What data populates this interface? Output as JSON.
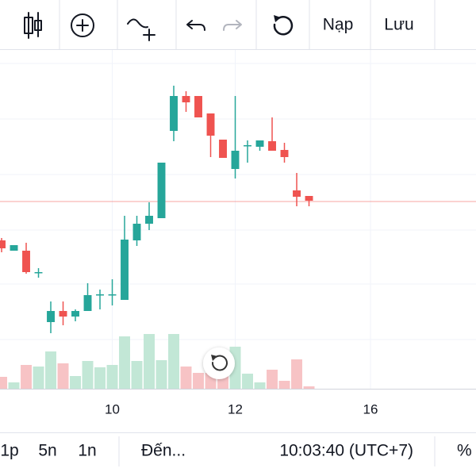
{
  "toolbar": {
    "buttons": [
      "Nạp",
      "Lưu"
    ]
  },
  "chart_data": {
    "type": "candlestick",
    "x": [
      0,
      1,
      2,
      3,
      4,
      5,
      6,
      7,
      8,
      9,
      10,
      11,
      12,
      13,
      14,
      15,
      16,
      17,
      18,
      19,
      20,
      21,
      22,
      23,
      24,
      25
    ],
    "open": [
      187,
      174,
      174,
      146,
      84,
      98,
      91,
      98,
      118,
      118,
      112,
      187,
      208,
      215,
      325,
      369,
      369,
      347,
      314,
      277,
      306,
      305,
      312,
      301,
      250,
      243
    ],
    "high": [
      190,
      181,
      184,
      152,
      110,
      110,
      100,
      133,
      125,
      138,
      218,
      218,
      235,
      285,
      382,
      375,
      369,
      347,
      314,
      369,
      313,
      313,
      342,
      310,
      272,
      243
    ],
    "low": [
      172,
      174,
      145,
      140,
      70,
      80,
      85,
      98,
      100,
      105,
      112,
      180,
      200,
      215,
      312,
      349,
      342,
      292,
      291,
      265,
      285,
      300,
      300,
      285,
      230,
      230
    ],
    "close": [
      177,
      181,
      147,
      147,
      98,
      91,
      98,
      118,
      119,
      119,
      188,
      208,
      218,
      285,
      369,
      361,
      342,
      319,
      291,
      300,
      307,
      313,
      300,
      292,
      242,
      237
    ],
    "volume": [
      15,
      8,
      30,
      28,
      47,
      32,
      16,
      35,
      27,
      30,
      66,
      35,
      69,
      36,
      69,
      28,
      20,
      20,
      44,
      53,
      19,
      8,
      24,
      10,
      37,
      3
    ],
    "up_color": "#26a69a",
    "down_color": "#ef5350",
    "volume_up_color": "#c2e7d6",
    "volume_down_color": "#f7c3c5",
    "price_line": 236,
    "xlim": [
      -0.13,
      38.58
    ],
    "xticks": [
      {
        "value": 9,
        "label": "10"
      },
      {
        "value": 19,
        "label": "12"
      },
      {
        "value": 30,
        "label": "16"
      }
    ],
    "ylim": [
      0,
      428
    ],
    "y2lim": [
      0,
      428
    ]
  },
  "bottom": {
    "intervals": [
      "1p",
      "5n",
      "1n"
    ],
    "goto": "Đến...",
    "clock": "10:03:40 (UTC+7)",
    "percent": "%"
  }
}
